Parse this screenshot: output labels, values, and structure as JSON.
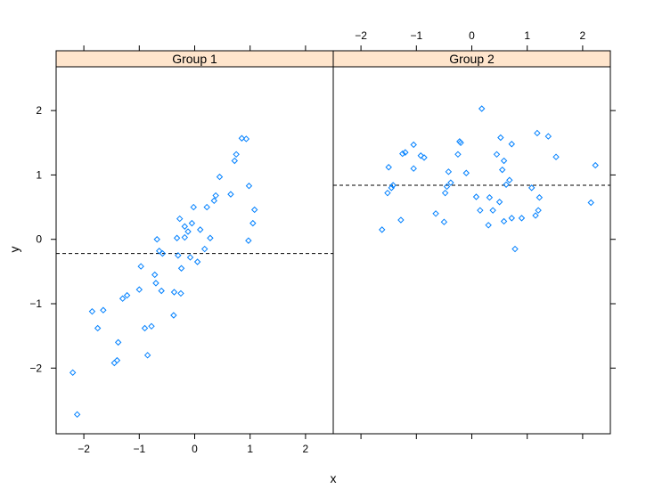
{
  "chart_data": {
    "type": "scatter",
    "xlabel": "x",
    "ylabel": "y",
    "xlim": [
      -2.5,
      2.5
    ],
    "ylim": [
      -3.02,
      2.68
    ],
    "x_ticks": [
      -2,
      -1,
      0,
      1,
      2
    ],
    "y_ticks": [
      -2,
      -1,
      0,
      1,
      2
    ],
    "marker_color": "#0080ff",
    "strip_color": "#ffe5cc",
    "panels": [
      {
        "name": "Group 1",
        "mean_line": -0.22,
        "points": [
          [
            -2.2,
            -2.07
          ],
          [
            -2.12,
            -2.72
          ],
          [
            -1.85,
            -1.12
          ],
          [
            -1.75,
            -1.38
          ],
          [
            -1.65,
            -1.1
          ],
          [
            -1.45,
            -1.92
          ],
          [
            -1.4,
            -1.88
          ],
          [
            -1.38,
            -1.6
          ],
          [
            -1.3,
            -0.92
          ],
          [
            -1.22,
            -0.87
          ],
          [
            -1.0,
            -0.78
          ],
          [
            -0.97,
            -0.42
          ],
          [
            -0.9,
            -1.38
          ],
          [
            -0.85,
            -1.8
          ],
          [
            -0.78,
            -1.35
          ],
          [
            -0.72,
            -0.55
          ],
          [
            -0.7,
            -0.68
          ],
          [
            -0.68,
            0.0
          ],
          [
            -0.64,
            -0.18
          ],
          [
            -0.6,
            -0.8
          ],
          [
            -0.58,
            -0.22
          ],
          [
            -0.38,
            -1.18
          ],
          [
            -0.37,
            -0.82
          ],
          [
            -0.32,
            0.02
          ],
          [
            -0.3,
            -0.25
          ],
          [
            -0.27,
            0.32
          ],
          [
            -0.25,
            -0.84
          ],
          [
            -0.24,
            -0.45
          ],
          [
            -0.18,
            0.2
          ],
          [
            -0.18,
            0.03
          ],
          [
            -0.12,
            0.12
          ],
          [
            -0.08,
            -0.28
          ],
          [
            -0.05,
            0.25
          ],
          [
            -0.02,
            0.5
          ],
          [
            0.05,
            -0.35
          ],
          [
            0.1,
            0.15
          ],
          [
            0.18,
            -0.15
          ],
          [
            0.22,
            0.5
          ],
          [
            0.28,
            0.02
          ],
          [
            0.35,
            0.6
          ],
          [
            0.38,
            0.68
          ],
          [
            0.45,
            0.97
          ],
          [
            0.65,
            0.7
          ],
          [
            0.72,
            1.22
          ],
          [
            0.75,
            1.32
          ],
          [
            0.85,
            1.57
          ],
          [
            0.93,
            1.56
          ],
          [
            0.97,
            -0.02
          ],
          [
            0.98,
            0.83
          ],
          [
            1.05,
            0.25
          ],
          [
            1.08,
            0.46
          ]
        ]
      },
      {
        "name": "Group 2",
        "mean_line": 0.84,
        "points": [
          [
            -1.62,
            0.15
          ],
          [
            -1.52,
            0.72
          ],
          [
            -1.5,
            1.12
          ],
          [
            -1.45,
            0.8
          ],
          [
            -1.42,
            0.84
          ],
          [
            -1.28,
            0.3
          ],
          [
            -1.25,
            1.33
          ],
          [
            -1.2,
            1.35
          ],
          [
            -1.05,
            1.47
          ],
          [
            -1.05,
            1.1
          ],
          [
            -0.92,
            1.3
          ],
          [
            -0.86,
            1.27
          ],
          [
            -0.65,
            0.4
          ],
          [
            -0.5,
            0.27
          ],
          [
            -0.48,
            0.72
          ],
          [
            -0.45,
            0.82
          ],
          [
            -0.42,
            1.05
          ],
          [
            -0.38,
            0.88
          ],
          [
            -0.25,
            1.32
          ],
          [
            -0.22,
            1.52
          ],
          [
            -0.2,
            1.5
          ],
          [
            -0.1,
            1.03
          ],
          [
            0.08,
            0.66
          ],
          [
            0.15,
            0.45
          ],
          [
            0.18,
            2.03
          ],
          [
            0.3,
            0.22
          ],
          [
            0.32,
            0.65
          ],
          [
            0.38,
            0.45
          ],
          [
            0.45,
            1.32
          ],
          [
            0.5,
            0.58
          ],
          [
            0.52,
            1.58
          ],
          [
            0.55,
            1.08
          ],
          [
            0.58,
            0.28
          ],
          [
            0.58,
            1.22
          ],
          [
            0.62,
            0.85
          ],
          [
            0.68,
            0.92
          ],
          [
            0.72,
            1.48
          ],
          [
            0.72,
            0.33
          ],
          [
            0.78,
            -0.15
          ],
          [
            0.9,
            0.33
          ],
          [
            1.08,
            0.8
          ],
          [
            1.15,
            0.37
          ],
          [
            1.18,
            1.65
          ],
          [
            1.2,
            0.45
          ],
          [
            1.22,
            0.65
          ],
          [
            1.38,
            1.6
          ],
          [
            1.52,
            1.28
          ],
          [
            2.15,
            0.57
          ],
          [
            2.23,
            1.15
          ]
        ]
      }
    ]
  }
}
